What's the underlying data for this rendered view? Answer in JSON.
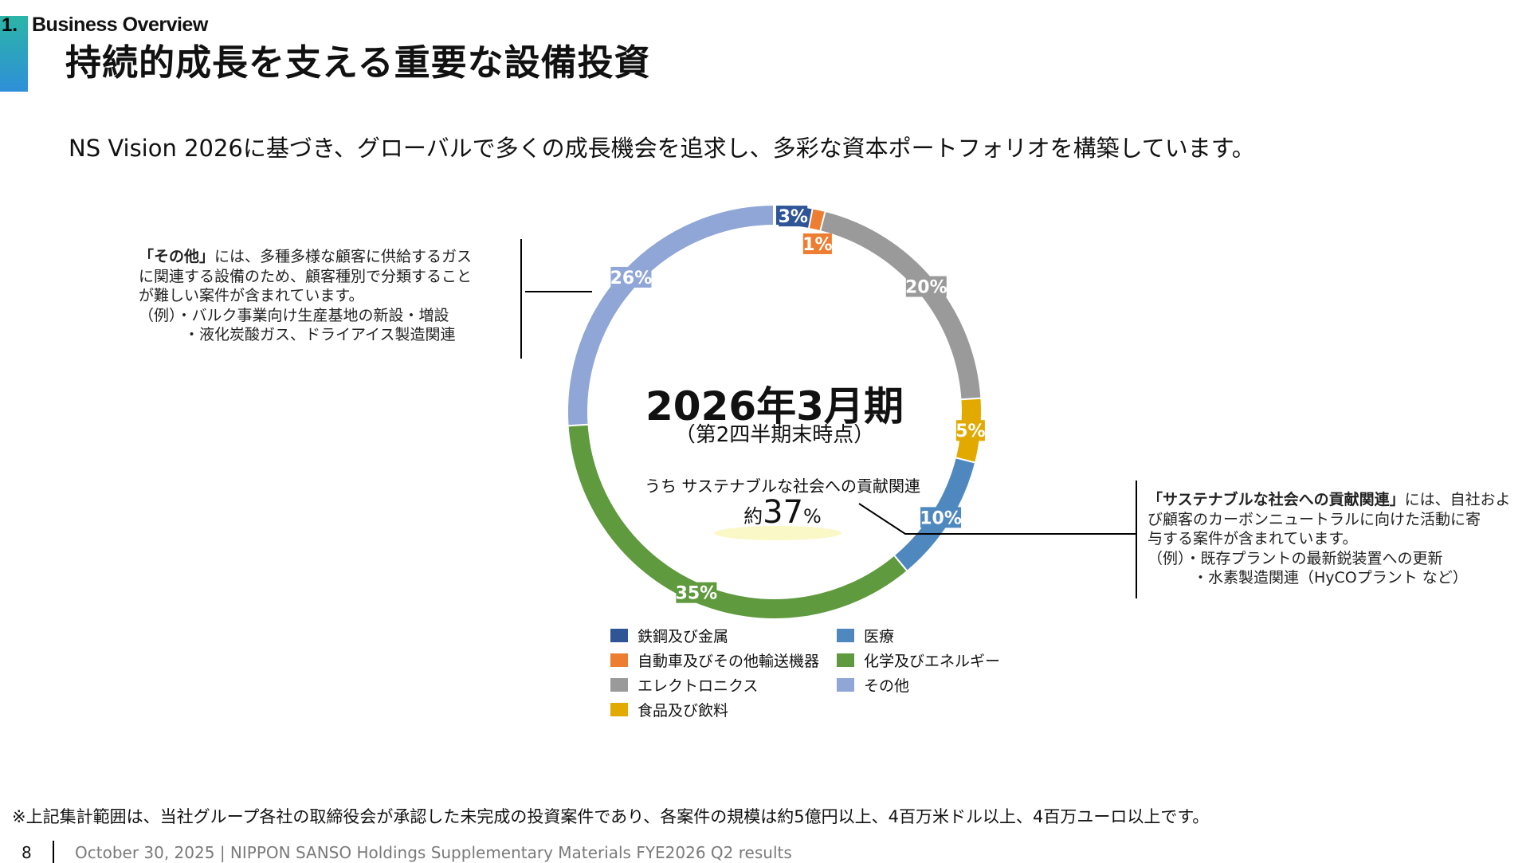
{
  "header": {
    "section_number": "1.",
    "section_title": "Business Overview",
    "title": "持続的成長を支える重要な設備投資",
    "subtitle": "NS Vision 2026に基づき、グローバルで多くの成長機会を追求し、多彩な資本ポートフォリオを構築しています。"
  },
  "left_note": {
    "bold": "「その他」",
    "lines": [
      "には、多種多様な顧客に供給するガス",
      "に関連する設備のため、顧客種別で分類すること",
      "が難しい案件が含まれています。",
      "（例）・バルク事業向け生産基地の新設・増設",
      "　　　・液化炭酸ガス、ドライアイス製造関連"
    ]
  },
  "right_note": {
    "bold": "「サステナブルな社会への貢献関連」",
    "lines": [
      "には、自社およ",
      "び顧客のカーボンニュートラルに向けた活動に寄",
      "与する案件が含まれています。",
      "（例）・既存プラントの最新鋭装置への更新",
      "　　　・水素製造関連（HyCOプラント など）"
    ]
  },
  "center": {
    "period": "2026年3月期",
    "period_note": "（第2四半期末時点）",
    "share_label": "うち サステナブルな社会への貢献関連",
    "share_prefix": "約",
    "share_value": "37",
    "share_unit": "%"
  },
  "chart_data": {
    "type": "pie",
    "variant": "donut",
    "direction": "clockwise from top",
    "categories": [
      "鉄鋼及び金属",
      "自動車及びその他輸送機器",
      "エレクトロニクス",
      "食品及び飲料",
      "医療",
      "化学及びエネルギー",
      "その他"
    ],
    "values": [
      3,
      1,
      20,
      5,
      10,
      35,
      26
    ],
    "labels": [
      "3%",
      "1%",
      "20%",
      "5%",
      "10%",
      "35%",
      "26%"
    ],
    "colors": [
      "#2f5597",
      "#ed7d31",
      "#9a9a9a",
      "#e2aa00",
      "#4f88bf",
      "#5f9a3f",
      "#8fa6d6"
    ],
    "legend": {
      "placement": "bottom",
      "order": [
        "鉄鋼及び金属",
        "医療",
        "自動車及びその他輸送機器",
        "化学及びエネルギー",
        "エレクトロニクス",
        "その他",
        "食品及び飲料"
      ]
    }
  },
  "footnote": "※上記集計範囲は、当社グループ各社の取締役会が承認した未完成の投資案件であり、各案件の規模は約5億円以上、4百万米ドル以上、4百万ユーロ以上です。",
  "footer": {
    "page": "8",
    "text": "October 30, 2025 | NIPPON SANSO Holdings Supplementary Materials FYE2026 Q2 results"
  }
}
